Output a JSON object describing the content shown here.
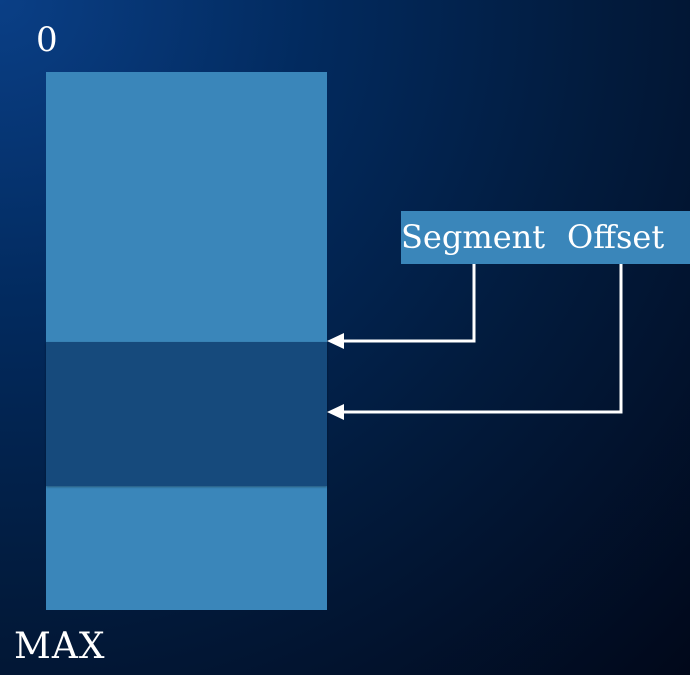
{
  "labels": {
    "top": "0",
    "bottom": "MAX"
  },
  "address": {
    "segment": "Segment",
    "offset": "Offset"
  },
  "colors": {
    "memory_block": "#3a86ba",
    "segment_block": "#164a7c",
    "arrow": "#ffffff"
  }
}
